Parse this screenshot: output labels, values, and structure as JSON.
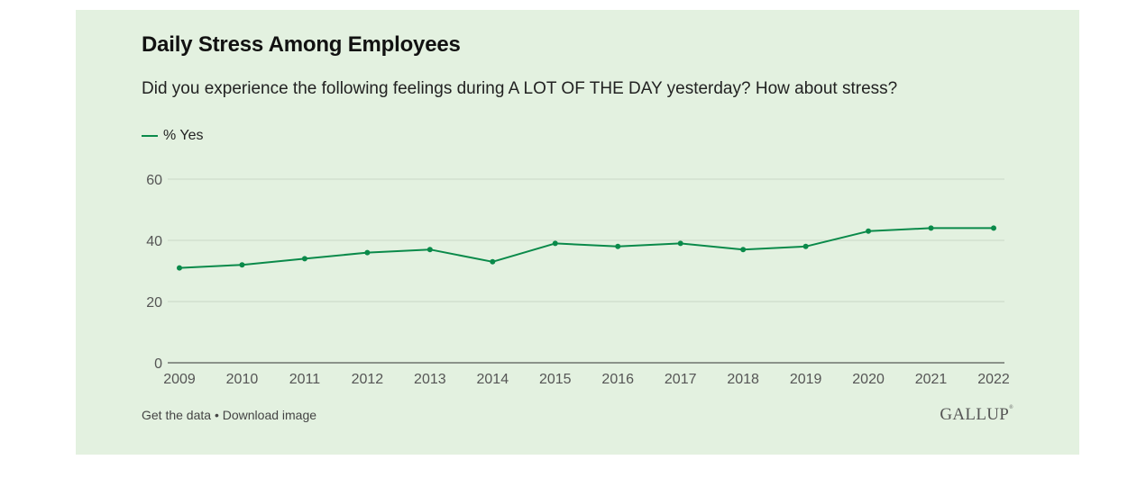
{
  "header": {
    "title": "Daily Stress Among Employees",
    "subtitle": "Did you experience the following feelings during A LOT OF THE DAY yesterday? How about stress?"
  },
  "legend": {
    "label": "% Yes"
  },
  "footer": {
    "get_data": "Get the data",
    "separator": " • ",
    "download": "Download image",
    "logo": "GALLUP",
    "logo_mark": "®"
  },
  "colors": {
    "series": "#0a8a4a",
    "background": "#e3f1e0"
  },
  "chart_data": {
    "type": "line",
    "title": "Daily Stress Among Employees",
    "subtitle": "Did you experience the following feelings during A LOT OF THE DAY yesterday? How about stress?",
    "xlabel": "",
    "ylabel": "",
    "x": [
      "2009",
      "2010",
      "2011",
      "2012",
      "2013",
      "2014",
      "2015",
      "2016",
      "2017",
      "2018",
      "2019",
      "2020",
      "2021",
      "2022"
    ],
    "series": [
      {
        "name": "% Yes",
        "values": [
          31,
          32,
          34,
          36,
          37,
          33,
          39,
          38,
          39,
          37,
          38,
          43,
          44,
          44
        ]
      }
    ],
    "ylim": [
      0,
      60
    ],
    "yticks": [
      0,
      20,
      40,
      60
    ],
    "grid": true,
    "legend_position": "top-left"
  }
}
